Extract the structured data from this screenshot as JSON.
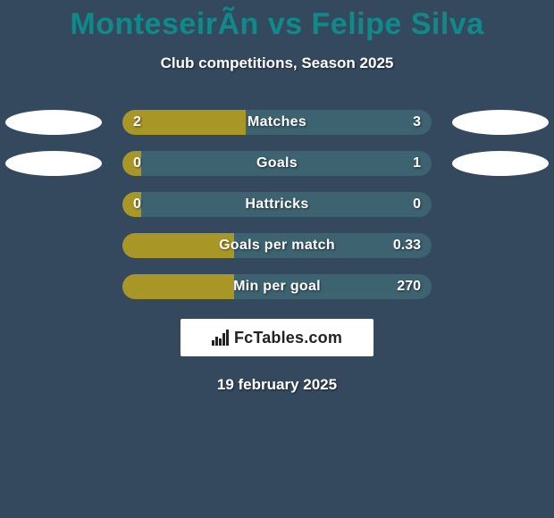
{
  "title_color": "#0f8a8a",
  "background_color": "#34495e",
  "left_color": "#a89626",
  "right_color": "#3d6270",
  "player_left": "MonteseirÃ­n",
  "player_right": "Felipe Silva",
  "title_joiner": " vs ",
  "subtitle": "Club competitions, Season 2025",
  "date": "19 february 2025",
  "logo_text": "FcTables.com",
  "rows": [
    {
      "label": "Matches",
      "left": "2",
      "right": "3",
      "left_pct": 40,
      "right_pct": 60,
      "ellipse_side_a": "left",
      "ellipse_side_b": "right"
    },
    {
      "label": "Goals",
      "left": "0",
      "right": "1",
      "left_pct": 6,
      "right_pct": 94,
      "ellipse_side_a": "left",
      "ellipse_side_b": "right"
    },
    {
      "label": "Hattricks",
      "left": "0",
      "right": "0",
      "left_pct": 6,
      "right_pct": 94
    },
    {
      "label": "Goals per match",
      "left": "",
      "right": "0.33",
      "left_pct": 36,
      "right_pct": 64
    },
    {
      "label": "Min per goal",
      "left": "",
      "right": "270",
      "left_pct": 36,
      "right_pct": 64
    }
  ]
}
